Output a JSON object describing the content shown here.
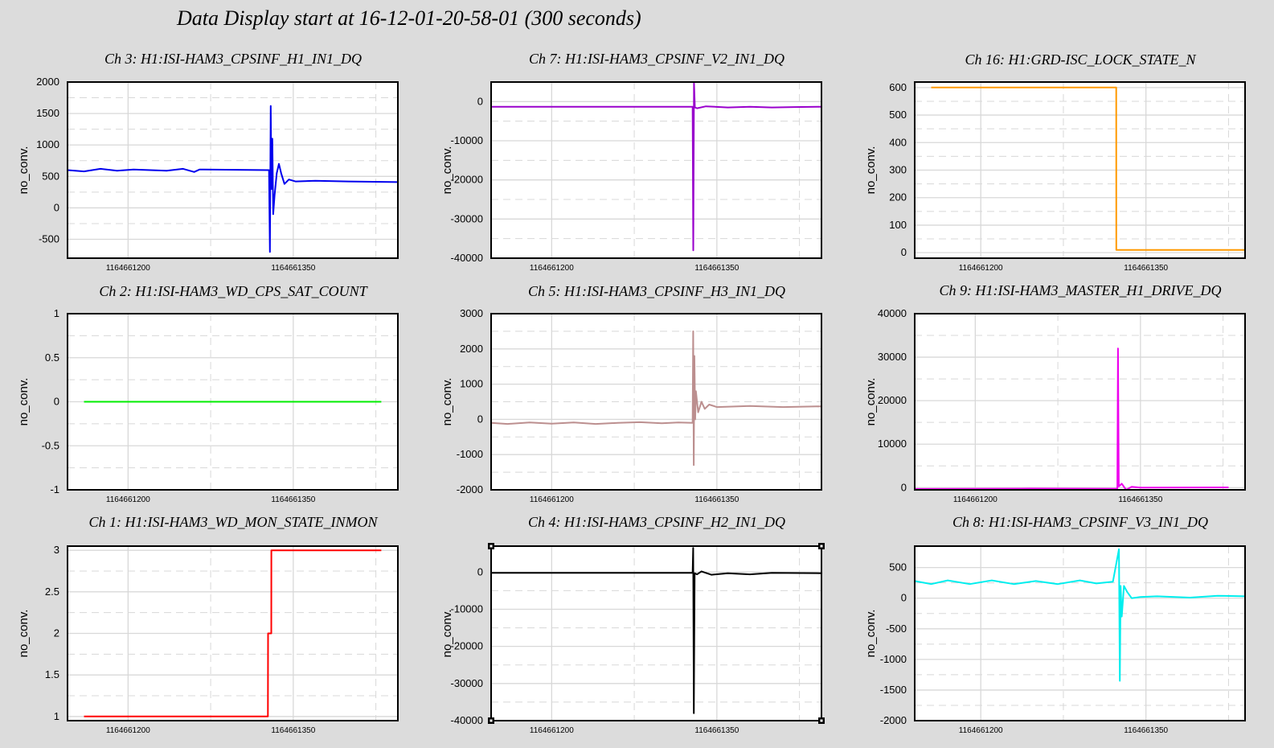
{
  "page": {
    "title": "Data Display start at 16-12-01-20-58-01 (300 seconds)"
  },
  "chart_data": [
    {
      "type": "line",
      "title": "Ch 3: H1:ISI-HAM3_CPSINF_H1_IN1_DQ",
      "ylabel": "no_conv.",
      "color": "#0000ee",
      "yticks": [
        -500,
        0,
        500,
        1000,
        1500,
        2000
      ],
      "ylim": [
        -800,
        2000
      ],
      "xticks": [
        1164661200,
        1164661350
      ],
      "xlim": [
        1164661145,
        1164661445
      ],
      "series": [
        {
          "x": [
            1164661145,
            1164661160,
            1164661175,
            1164661190,
            1164661205,
            1164661220,
            1164661235,
            1164661250,
            1164661260,
            1164661265,
            1164661328,
            1164661328.8,
            1164661329.5,
            1164661330.2,
            1164661331,
            1164661331.8,
            1164661333,
            1164661335,
            1164661337,
            1164661339,
            1164661342,
            1164661346,
            1164661352,
            1164661370,
            1164661400,
            1164661445
          ],
          "y": [
            600,
            580,
            620,
            590,
            610,
            600,
            590,
            620,
            570,
            610,
            600,
            -700,
            1620,
            300,
            1100,
            -100,
            200,
            550,
            700,
            550,
            380,
            450,
            420,
            430,
            420,
            410
          ]
        }
      ]
    },
    {
      "type": "line",
      "title": "Ch 7: H1:ISI-HAM3_CPSINF_V2_IN1_DQ",
      "ylabel": "no_conv.",
      "color": "#9900cc",
      "yticks": [
        -40000,
        -30000,
        -20000,
        -10000,
        0
      ],
      "ylim": [
        -40000,
        5000
      ],
      "xticks": [
        1164661200,
        1164661350
      ],
      "xlim": [
        1164661145,
        1164661445
      ],
      "series": [
        {
          "x": [
            1164661145,
            1164661328,
            1164661328.6,
            1164661329.2,
            1164661330,
            1164661332,
            1164661340,
            1164661360,
            1164661380,
            1164661400,
            1164661420,
            1164661445
          ],
          "y": [
            -1300,
            -1300,
            -38000,
            4800,
            -1500,
            -1700,
            -1200,
            -1500,
            -1300,
            -1500,
            -1400,
            -1300
          ]
        }
      ]
    },
    {
      "type": "line",
      "title": "Ch 16: H1:GRD-ISC_LOCK_STATE_N",
      "ylabel": "no_conv.",
      "color": "#ff9900",
      "yticks": [
        0,
        100,
        200,
        300,
        400,
        500,
        600
      ],
      "ylim": [
        -20,
        620
      ],
      "xticks": [
        1164661200,
        1164661350
      ],
      "xlim": [
        1164661140,
        1164661440
      ],
      "series": [
        {
          "x": [
            1164661155,
            1164661323,
            1164661323.1,
            1164661440
          ],
          "y": [
            600,
            600,
            10,
            10
          ]
        }
      ]
    },
    {
      "type": "line",
      "title": "Ch 2: H1:ISI-HAM3_WD_CPS_SAT_COUNT",
      "ylabel": "no_conv.",
      "color": "#00ee00",
      "yticks": [
        -1,
        -0.5,
        0,
        0.5,
        1
      ],
      "ylim": [
        -1,
        1
      ],
      "xticks": [
        1164661200,
        1164661350
      ],
      "xlim": [
        1164661145,
        1164661445
      ],
      "series": [
        {
          "x": [
            1164661160,
            1164661430
          ],
          "y": [
            0,
            0
          ]
        }
      ]
    },
    {
      "type": "line",
      "title": "Ch 5: H1:ISI-HAM3_CPSINF_H3_IN1_DQ",
      "ylabel": "no_conv.",
      "color": "#bc8f8f",
      "yticks": [
        -2000,
        -1000,
        0,
        1000,
        2000,
        3000
      ],
      "ylim": [
        -2000,
        3000
      ],
      "xticks": [
        1164661200,
        1164661350
      ],
      "xlim": [
        1164661145,
        1164661445
      ],
      "series": [
        {
          "x": [
            1164661145,
            1164661160,
            1164661180,
            1164661200,
            1164661220,
            1164661240,
            1164661260,
            1164661280,
            1164661300,
            1164661315,
            1164661328,
            1164661328.5,
            1164661329,
            1164661329.6,
            1164661330.3,
            1164661331,
            1164661333,
            1164661336,
            1164661339,
            1164661343,
            1164661350,
            1164661380,
            1164661410,
            1164661445
          ],
          "y": [
            -100,
            -130,
            -90,
            -120,
            -90,
            -130,
            -100,
            -80,
            -110,
            -90,
            -100,
            2500,
            -1300,
            1800,
            0,
            800,
            200,
            500,
            300,
            420,
            350,
            380,
            350,
            370
          ]
        }
      ]
    },
    {
      "type": "line",
      "title": "Ch 9: H1:ISI-HAM3_MASTER_H1_DRIVE_DQ",
      "ylabel": "no_conv.",
      "color": "#ee00ee",
      "yticks": [
        0,
        10000,
        20000,
        30000,
        40000
      ],
      "ylim": [
        -500,
        40000
      ],
      "xticks": [
        1164661200,
        1164661350
      ],
      "xlim": [
        1164661145,
        1164661445
      ],
      "series": [
        {
          "x": [
            1164661145,
            1164661250,
            1164661327,
            1164661329,
            1164661329.6,
            1164661330.3,
            1164661333,
            1164661337,
            1164661342,
            1164661350,
            1164661430
          ],
          "y": [
            -300,
            -200,
            -250,
            -200,
            32000,
            300,
            900,
            -500,
            200,
            0,
            50
          ]
        }
      ]
    },
    {
      "type": "line",
      "title": "Ch 1: H1:ISI-HAM3_WD_MON_STATE_INMON",
      "ylabel": "no_conv.",
      "color": "#ff0000",
      "yticks": [
        1,
        1.5,
        2,
        2.5,
        3
      ],
      "ylim": [
        0.95,
        3.05
      ],
      "xticks": [
        1164661200,
        1164661350
      ],
      "xlim": [
        1164661145,
        1164661445
      ],
      "series": [
        {
          "x": [
            1164661160,
            1164661327,
            1164661327.1,
            1164661330,
            1164661330.1,
            1164661430
          ],
          "y": [
            1,
            1,
            2,
            2,
            3,
            3
          ]
        }
      ]
    },
    {
      "type": "line",
      "title": "Ch 4: H1:ISI-HAM3_CPSINF_H2_IN1_DQ",
      "ylabel": "no_conv.",
      "color": "#000000",
      "yticks": [
        -40000,
        -30000,
        -20000,
        -10000,
        0
      ],
      "ylim": [
        -40000,
        7000
      ],
      "xticks": [
        1164661200,
        1164661350
      ],
      "xlim": [
        1164661145,
        1164661445
      ],
      "series": [
        {
          "x": [
            1164661145,
            1164661328,
            1164661328.5,
            1164661329.1,
            1164661329.8,
            1164661332,
            1164661336,
            1164661345,
            1164661360,
            1164661380,
            1164661400,
            1164661445
          ],
          "y": [
            -200,
            -200,
            6500,
            -38000,
            -300,
            -600,
            200,
            -700,
            -300,
            -600,
            -200,
            -300
          ]
        }
      ]
    },
    {
      "type": "line",
      "title": "Ch 8: H1:ISI-HAM3_CPSINF_V3_IN1_DQ",
      "ylabel": "no_conv.",
      "color": "#00eeee",
      "yticks": [
        -2000,
        -1500,
        -1000,
        -500,
        0,
        500
      ],
      "ylim": [
        -2000,
        850
      ],
      "xticks": [
        1164661200,
        1164661350
      ],
      "xlim": [
        1164661140,
        1164661440
      ],
      "series": [
        {
          "x": [
            1164661140,
            1164661155,
            1164661170,
            1164661190,
            1164661210,
            1164661230,
            1164661250,
            1164661270,
            1164661290,
            1164661305,
            1164661320,
            1164661325.5,
            1164661326.3,
            1164661327,
            1164661328,
            1164661330,
            1164661333,
            1164661337,
            1164661345,
            1164661360,
            1164661390,
            1164661415,
            1164661440
          ],
          "y": [
            280,
            230,
            290,
            230,
            290,
            230,
            280,
            230,
            290,
            240,
            270,
            800,
            -1350,
            200,
            -300,
            200,
            100,
            0,
            20,
            30,
            10,
            40,
            30
          ]
        }
      ]
    }
  ]
}
